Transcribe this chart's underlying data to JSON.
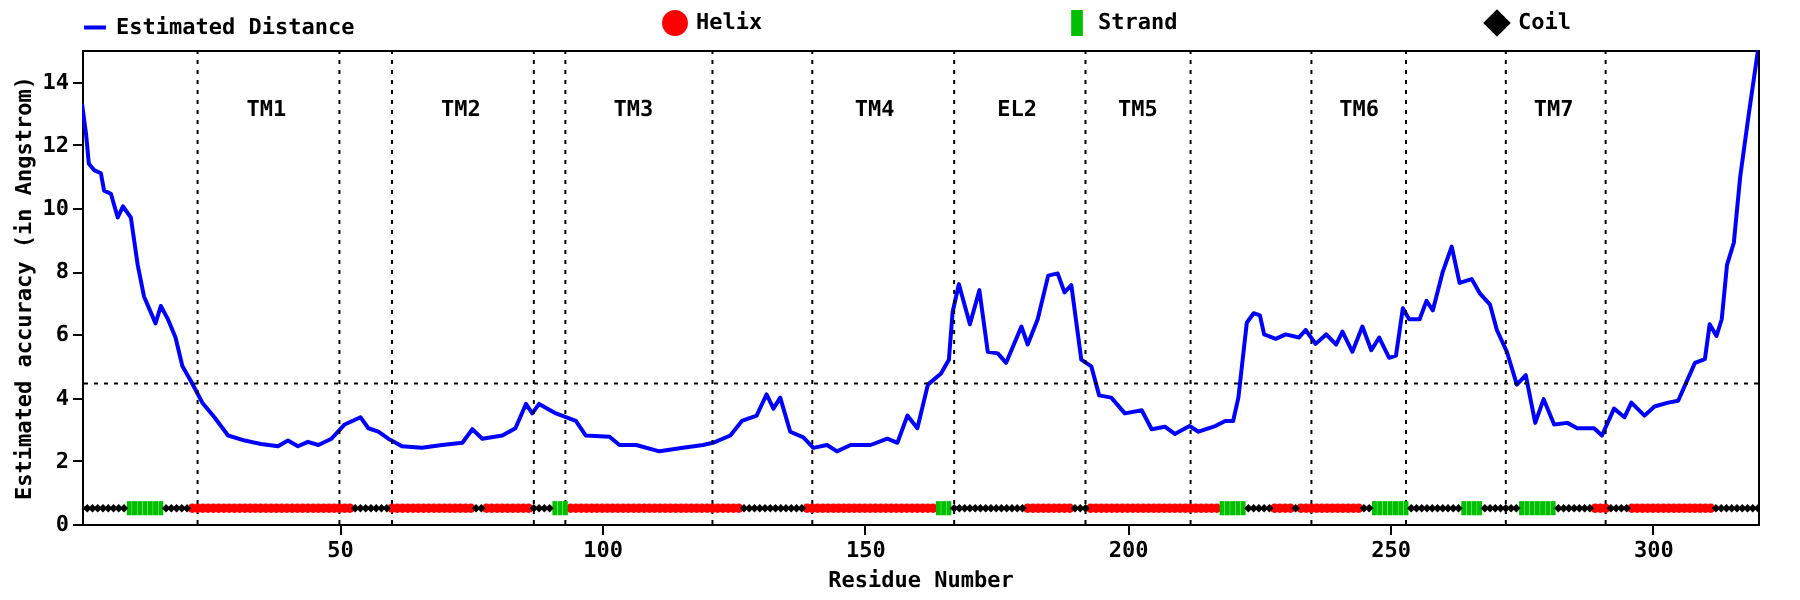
{
  "chart_data": {
    "type": "line",
    "xlabel": "Residue Number",
    "ylabel": "Estimated accuracy (in Angstrom)",
    "xlim": [
      1,
      320
    ],
    "ylim": [
      0,
      15
    ],
    "xticks": [
      50,
      100,
      150,
      200,
      250,
      300
    ],
    "yticks": [
      0,
      2,
      4,
      6,
      8,
      10,
      12,
      14
    ],
    "grid": false,
    "legend": "top",
    "series": [
      {
        "name": "Estimated Distance",
        "color": "#0000ff",
        "line_style": "solid",
        "x": [
          1,
          1.8,
          2.3,
          3.3,
          4.6,
          5.2,
          6.5,
          7.8,
          8.8,
          10.3,
          11.6,
          12.8,
          15,
          16,
          17.3,
          18.8,
          20.1,
          21.8,
          23.9,
          26.2,
          28.8,
          32,
          35.1,
          38.3,
          40.2,
          42.1,
          44,
          46,
          48.5,
          51,
          54,
          55.5,
          57.4,
          59.3,
          61.9,
          65.7,
          69.5,
          73.4,
          75.3,
          77.2,
          81,
          83.5,
          85.5,
          86.7,
          88,
          91.2,
          95,
          96.9,
          101.4,
          103.3,
          106.5,
          110.9,
          115.4,
          119.2,
          121.1,
          124.4,
          126.6,
          129.4,
          131.3,
          132.6,
          133.9,
          135.8,
          138.3,
          140.2,
          142.8,
          144.7,
          147.3,
          151.1,
          154.3,
          156.2,
          158.1,
          160,
          162,
          164.5,
          166,
          166.7,
          167.9,
          170,
          171.8,
          173.4,
          175.3,
          176.9,
          179.8,
          181,
          182.9,
          184.9,
          186.7,
          188,
          189.3,
          191.2,
          193.1,
          194.6,
          196.9,
          199.5,
          202.7,
          204.6,
          207.1,
          209,
          211.8,
          213.5,
          216.7,
          218.6,
          220.1,
          221.1,
          222.7,
          224,
          225.2,
          226,
          228.2,
          230.1,
          232.6,
          233.9,
          235.8,
          237.8,
          239.7,
          240.9,
          242.8,
          244.7,
          246.4,
          247.9,
          249.8,
          251.1,
          252.4,
          253.6,
          255.6,
          256.9,
          258.1,
          260,
          261.7,
          263.2,
          265.5,
          267.1,
          269,
          270.3,
          272.2,
          274.1,
          275.8,
          277.6,
          279.2,
          281.2,
          283.7,
          285.6,
          288.8,
          290.3,
          292.6,
          294.6,
          295.9,
          298.4,
          300.3,
          302.9,
          304.8,
          308,
          309.9,
          310.8,
          312.1,
          313.1,
          314.1,
          315.4,
          316.6,
          318.2,
          320
        ],
        "values": [
          13.3,
          12.3,
          11.4,
          11.2,
          11.1,
          10.55,
          10.45,
          9.7,
          10.05,
          9.7,
          8.2,
          7.2,
          6.35,
          6.9,
          6.5,
          5.9,
          5.0,
          4.5,
          3.84,
          3.38,
          2.8,
          2.64,
          2.53,
          2.46,
          2.64,
          2.46,
          2.6,
          2.5,
          2.7,
          3.15,
          3.38,
          3.03,
          2.92,
          2.7,
          2.46,
          2.41,
          2.5,
          2.57,
          3.0,
          2.7,
          2.8,
          3.03,
          3.8,
          3.5,
          3.8,
          3.5,
          3.26,
          2.8,
          2.76,
          2.5,
          2.5,
          2.3,
          2.41,
          2.5,
          2.57,
          2.8,
          3.26,
          3.43,
          4.1,
          3.65,
          4.0,
          2.92,
          2.74,
          2.41,
          2.5,
          2.3,
          2.5,
          2.5,
          2.7,
          2.57,
          3.43,
          3.03,
          4.41,
          4.76,
          5.2,
          6.7,
          7.59,
          6.32,
          7.4,
          5.45,
          5.4,
          5.1,
          6.25,
          5.68,
          6.48,
          7.86,
          7.93,
          7.33,
          7.56,
          5.2,
          4.99,
          4.07,
          4.0,
          3.5,
          3.6,
          3.0,
          3.08,
          2.85,
          3.1,
          2.92,
          3.1,
          3.26,
          3.26,
          4.0,
          6.37,
          6.67,
          6.6,
          6.0,
          5.86,
          6.0,
          5.9,
          6.14,
          5.7,
          6.0,
          5.68,
          6.09,
          5.45,
          6.25,
          5.5,
          5.9,
          5.26,
          5.33,
          6.83,
          6.48,
          6.48,
          7.06,
          6.76,
          7.98,
          8.78,
          7.63,
          7.75,
          7.29,
          6.94,
          6.14,
          5.45,
          4.41,
          4.71,
          3.2,
          3.95,
          3.15,
          3.2,
          3.03,
          3.03,
          2.8,
          3.65,
          3.38,
          3.84,
          3.43,
          3.72,
          3.84,
          3.9,
          5.1,
          5.22,
          6.32,
          5.95,
          6.48,
          8.2,
          8.9,
          10.97,
          12.92,
          15.0
        ]
      },
      {
        "name": "Helix",
        "type": "scatter",
        "color": "#ff0000",
        "marker": "circle",
        "x": [
          22,
          23,
          24,
          25,
          26,
          27,
          28,
          29,
          30,
          31,
          32,
          33,
          34,
          35,
          36,
          37,
          38,
          39,
          40,
          41,
          42,
          43,
          44,
          45,
          46,
          47,
          48,
          49,
          50,
          51,
          52,
          60,
          61,
          62,
          63,
          64,
          65,
          66,
          67,
          68,
          69,
          70,
          71,
          72,
          73,
          74,
          75,
          78,
          79,
          80,
          81,
          82,
          83,
          84,
          85,
          86,
          94,
          95,
          96,
          97,
          98,
          99,
          100,
          101,
          102,
          103,
          104,
          105,
          106,
          107,
          108,
          109,
          110,
          111,
          112,
          113,
          114,
          115,
          116,
          117,
          118,
          119,
          120,
          121,
          122,
          123,
          124,
          125,
          126,
          139,
          140,
          141,
          142,
          143,
          144,
          145,
          146,
          147,
          148,
          149,
          150,
          151,
          152,
          153,
          154,
          155,
          156,
          157,
          158,
          159,
          160,
          161,
          162,
          163,
          181,
          182,
          183,
          184,
          185,
          186,
          187,
          188,
          189,
          193,
          194,
          195,
          196,
          197,
          198,
          199,
          200,
          201,
          202,
          203,
          204,
          205,
          206,
          207,
          208,
          209,
          210,
          211,
          212,
          213,
          214,
          215,
          216,
          217,
          228,
          229,
          230,
          231,
          233,
          234,
          235,
          236,
          237,
          238,
          239,
          240,
          241,
          242,
          243,
          244,
          289,
          290,
          291,
          296,
          297,
          298,
          299,
          300,
          301,
          302,
          303,
          304,
          305,
          306,
          307,
          308,
          309,
          310,
          311
        ],
        "values": [
          0.5,
          0.5,
          0.5,
          0.5,
          0.5,
          0.5,
          0.5,
          0.5,
          0.5,
          0.5,
          0.5,
          0.5,
          0.5,
          0.5,
          0.5,
          0.5,
          0.5,
          0.5,
          0.5,
          0.5,
          0.5,
          0.5,
          0.5,
          0.5,
          0.5,
          0.5,
          0.5,
          0.5,
          0.5,
          0.5,
          0.5,
          0.5,
          0.5,
          0.5,
          0.5,
          0.5,
          0.5,
          0.5,
          0.5,
          0.5,
          0.5,
          0.5,
          0.5,
          0.5,
          0.5,
          0.5,
          0.5,
          0.5,
          0.5,
          0.5,
          0.5,
          0.5,
          0.5,
          0.5,
          0.5,
          0.5,
          0.5,
          0.5,
          0.5,
          0.5,
          0.5,
          0.5,
          0.5,
          0.5,
          0.5,
          0.5,
          0.5,
          0.5,
          0.5,
          0.5,
          0.5,
          0.5,
          0.5,
          0.5,
          0.5,
          0.5,
          0.5,
          0.5,
          0.5,
          0.5,
          0.5,
          0.5,
          0.5,
          0.5,
          0.5,
          0.5,
          0.5,
          0.5,
          0.5,
          0.5,
          0.5,
          0.5,
          0.5,
          0.5,
          0.5,
          0.5,
          0.5,
          0.5,
          0.5,
          0.5,
          0.5,
          0.5,
          0.5,
          0.5,
          0.5,
          0.5,
          0.5,
          0.5,
          0.5,
          0.5,
          0.5,
          0.5,
          0.5,
          0.5,
          0.5,
          0.5,
          0.5,
          0.5,
          0.5,
          0.5,
          0.5,
          0.5,
          0.5,
          0.5,
          0.5,
          0.5,
          0.5,
          0.5,
          0.5,
          0.5,
          0.5,
          0.5,
          0.5,
          0.5,
          0.5,
          0.5,
          0.5,
          0.5,
          0.5,
          0.5,
          0.5,
          0.5,
          0.5,
          0.5,
          0.5,
          0.5,
          0.5,
          0.5,
          0.5,
          0.5,
          0.5,
          0.5,
          0.5,
          0.5,
          0.5,
          0.5,
          0.5,
          0.5,
          0.5,
          0.5,
          0.5,
          0.5,
          0.5,
          0.5,
          0.5,
          0.5,
          0.5,
          0.5,
          0.5,
          0.5,
          0.5,
          0.5,
          0.5,
          0.5,
          0.5,
          0.5,
          0.5,
          0.5,
          0.5,
          0.5,
          0.5,
          0.5,
          0.5
        ]
      },
      {
        "name": "Strand",
        "type": "scatter",
        "color": "#00c000",
        "marker": "square",
        "x": [
          10,
          11,
          12,
          13,
          14,
          15,
          16,
          91,
          92,
          93,
          164,
          165,
          166,
          218,
          219,
          220,
          221,
          222,
          247,
          248,
          249,
          250,
          251,
          252,
          253,
          264,
          265,
          266,
          267,
          275,
          276,
          277,
          278,
          279,
          280,
          281
        ],
        "values": [
          0.5,
          0.5,
          0.5,
          0.5,
          0.5,
          0.5,
          0.5,
          0.5,
          0.5,
          0.5,
          0.5,
          0.5,
          0.5,
          0.5,
          0.5,
          0.5,
          0.5,
          0.5,
          0.5,
          0.5,
          0.5,
          0.5,
          0.5,
          0.5,
          0.5,
          0.5,
          0.5,
          0.5,
          0.5,
          0.5,
          0.5,
          0.5,
          0.5,
          0.5,
          0.5,
          0.5
        ]
      },
      {
        "name": "Coil",
        "type": "scatter",
        "color": "#000000",
        "marker": "diamond",
        "x": [
          1,
          2,
          3,
          4,
          5,
          6,
          7,
          8,
          9,
          17,
          18,
          19,
          20,
          21,
          53,
          54,
          55,
          56,
          57,
          58,
          59,
          76,
          77,
          87,
          88,
          89,
          90,
          127,
          128,
          129,
          130,
          131,
          132,
          133,
          134,
          135,
          136,
          137,
          138,
          167,
          168,
          169,
          170,
          171,
          172,
          173,
          174,
          175,
          176,
          177,
          178,
          179,
          180,
          190,
          191,
          192,
          223,
          224,
          225,
          226,
          227,
          232,
          245,
          246,
          254,
          255,
          256,
          257,
          258,
          259,
          260,
          261,
          262,
          263,
          268,
          269,
          270,
          271,
          272,
          273,
          274,
          282,
          283,
          284,
          285,
          286,
          287,
          288,
          292,
          293,
          294,
          295,
          312,
          313,
          314,
          315,
          316,
          317,
          318,
          319,
          320
        ],
        "values": [
          0.5,
          0.5,
          0.5,
          0.5,
          0.5,
          0.5,
          0.5,
          0.5,
          0.5,
          0.5,
          0.5,
          0.5,
          0.5,
          0.5,
          0.5,
          0.5,
          0.5,
          0.5,
          0.5,
          0.5,
          0.5,
          0.5,
          0.5,
          0.5,
          0.5,
          0.5,
          0.5,
          0.5,
          0.5,
          0.5,
          0.5,
          0.5,
          0.5,
          0.5,
          0.5,
          0.5,
          0.5,
          0.5,
          0.5,
          0.5,
          0.5,
          0.5,
          0.5,
          0.5,
          0.5,
          0.5,
          0.5,
          0.5,
          0.5,
          0.5,
          0.5,
          0.5,
          0.5,
          0.5,
          0.5,
          0.5,
          0.5,
          0.5,
          0.5,
          0.5,
          0.5,
          0.5,
          0.5,
          0.5,
          0.5,
          0.5,
          0.5,
          0.5,
          0.5,
          0.5,
          0.5,
          0.5,
          0.5,
          0.5,
          0.5,
          0.5,
          0.5,
          0.5,
          0.5,
          0.5,
          0.5,
          0.5,
          0.5,
          0.5,
          0.5,
          0.5,
          0.5,
          0.5,
          0.5,
          0.5,
          0.5,
          0.5,
          0.5,
          0.5,
          0.5,
          0.5,
          0.5,
          0.5,
          0.5,
          0.5,
          0.5
        ]
      }
    ],
    "ref_lines": [
      {
        "axis": "x",
        "value": 23,
        "line_style": "dotted"
      },
      {
        "axis": "x",
        "value": 50,
        "line_style": "dotted"
      },
      {
        "axis": "x",
        "value": 60,
        "line_style": "dotted"
      },
      {
        "axis": "x",
        "value": 87,
        "line_style": "dotted"
      },
      {
        "axis": "x",
        "value": 93,
        "line_style": "dotted"
      },
      {
        "axis": "x",
        "value": 121,
        "line_style": "dotted"
      },
      {
        "axis": "x",
        "value": 140,
        "line_style": "dotted"
      },
      {
        "axis": "x",
        "value": 167,
        "line_style": "dotted"
      },
      {
        "axis": "x",
        "value": 192,
        "line_style": "dotted"
      },
      {
        "axis": "x",
        "value": 212,
        "line_style": "dotted"
      },
      {
        "axis": "x",
        "value": 235,
        "line_style": "dotted"
      },
      {
        "axis": "x",
        "value": 253,
        "line_style": "dotted"
      },
      {
        "axis": "x",
        "value": 272,
        "line_style": "dotted"
      },
      {
        "axis": "x",
        "value": 291,
        "line_style": "dotted"
      },
      {
        "axis": "y",
        "value": 4.45,
        "line_style": "dotted"
      }
    ],
    "annotations": [
      "TM1",
      "TM2",
      "TM3",
      "TM4",
      "EL2",
      "TM5",
      "TM6",
      "TM7"
    ]
  }
}
